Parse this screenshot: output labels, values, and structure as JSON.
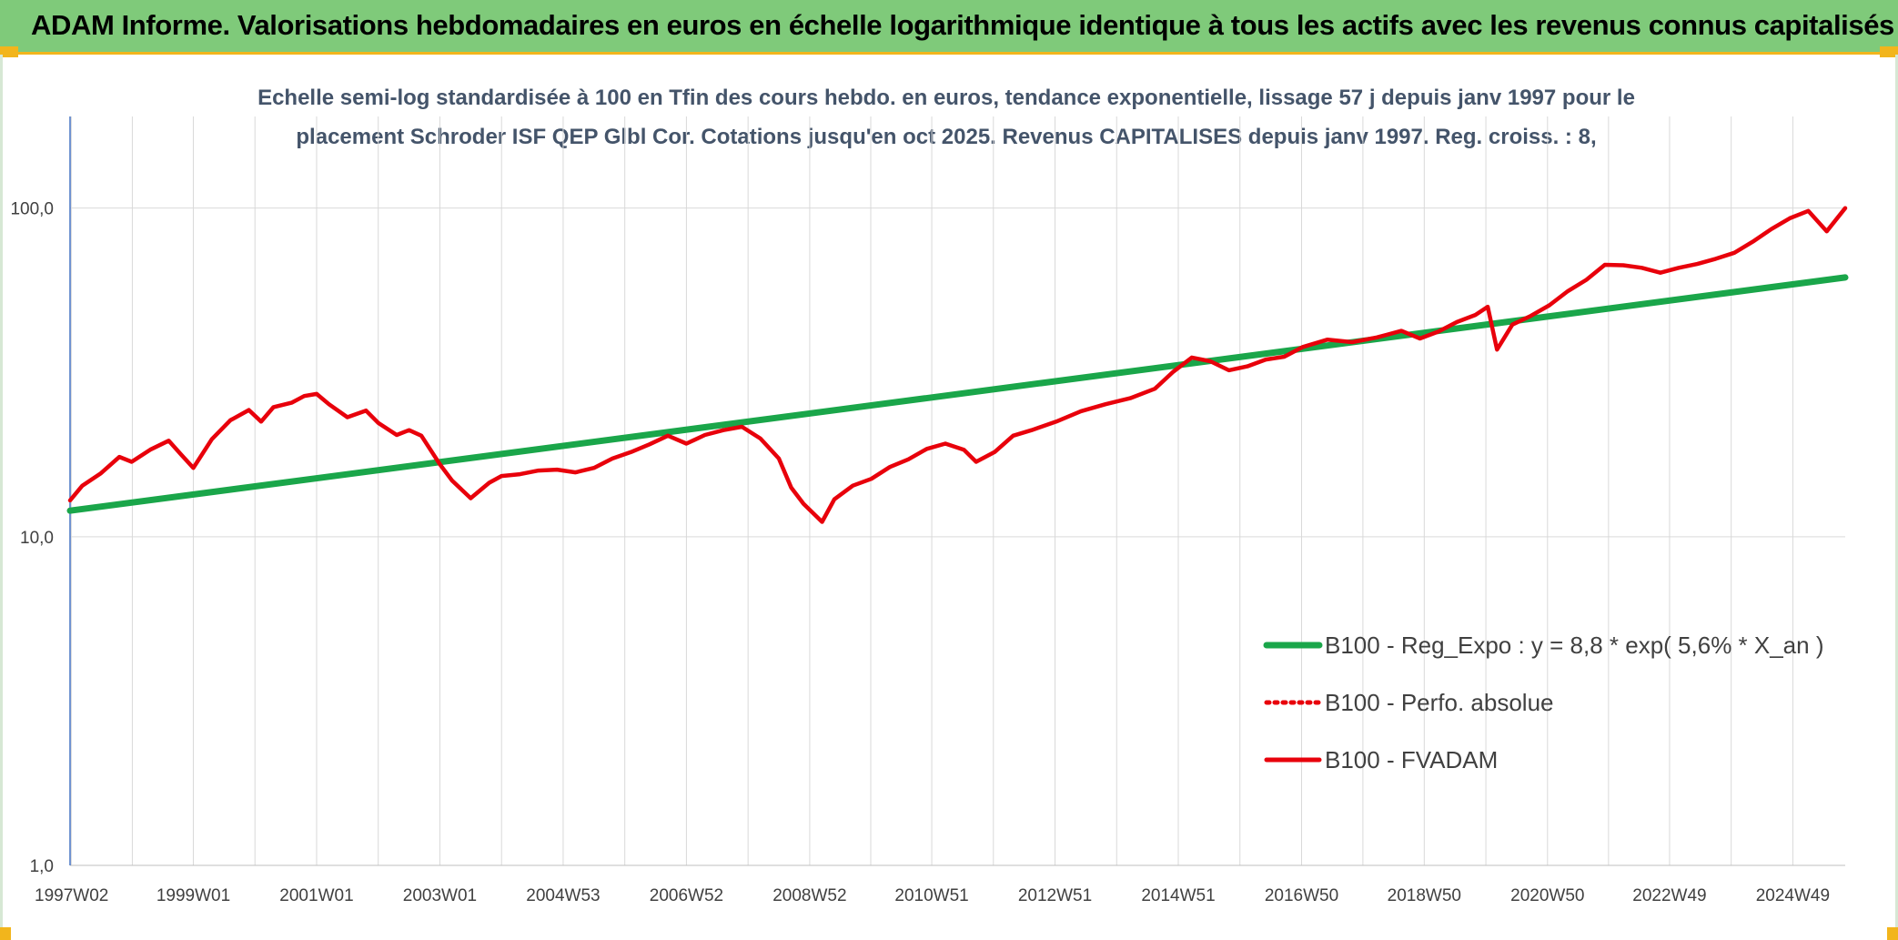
{
  "banner": {
    "title": "ADAM Informe. Valorisations hebdomadaires en euros en échelle logarithmique identique à tous les actifs avec les revenus connus capitalisés"
  },
  "colors": {
    "banner_bg": "#7fca7a",
    "accent": "#f2b51c",
    "trend": "#1aa64a",
    "series": "#e8000b"
  },
  "chart_data": {
    "type": "line",
    "subtitle_lines": [
      "Echelle semi-log standardisée à 100 en Tfin des cours hebdo. en euros, tendance exponentielle, lissage 57 j depuis janv 1997 pour le",
      "placement Schroder ISF QEP Glbl Cor. Cotations jusqu'en oct 2025. Revenus CAPITALISES depuis janv 1997. Reg. croiss. : 8,"
    ],
    "y_scale": "log",
    "ylim": [
      1,
      190
    ],
    "y_ticks": [
      1,
      10,
      100
    ],
    "y_tick_labels": [
      "1,0",
      "10,0",
      "100,0"
    ],
    "xlim": [
      1997.0,
      2025.8
    ],
    "x_tick_labels": [
      "1997W02",
      "1999W01",
      "2001W01",
      "2003W01",
      "2004W53",
      "2006W52",
      "2008W52",
      "2010W51",
      "2012W51",
      "2014W51",
      "2016W50",
      "2018W50",
      "2020W50",
      "2022W49",
      "2024W49"
    ],
    "x_tick_positions": [
      1997.02,
      1999.0,
      2001.0,
      2003.0,
      2005.0,
      2007.0,
      2009.0,
      2010.98,
      2012.98,
      2014.98,
      2016.98,
      2018.97,
      2020.97,
      2022.95,
      2024.95
    ],
    "grid": true,
    "legend_position": "bottom-right",
    "series": [
      {
        "name": "B100 - Reg_Expo : y = 8,8 * exp( 5,6% *  X_an )",
        "style": "solid",
        "color": "#1aa64a",
        "x": [
          1997.0,
          2025.8
        ],
        "y": [
          12.0,
          61.5
        ]
      },
      {
        "name": "B100 - Perfo. absolue",
        "style": "dotted",
        "color": "#e8000b",
        "x": [],
        "y": []
      },
      {
        "name": "B100 - FVADAM",
        "style": "solid",
        "color": "#e8000b",
        "x": [
          1997.0,
          1997.2,
          1997.5,
          1997.8,
          1998.0,
          1998.3,
          1998.6,
          1998.8,
          1999.0,
          1999.3,
          1999.6,
          1999.9,
          2000.1,
          2000.3,
          2000.6,
          2000.8,
          2001.0,
          2001.2,
          2001.5,
          2001.8,
          2002.0,
          2002.3,
          2002.5,
          2002.7,
          2003.0,
          2003.2,
          2003.5,
          2003.8,
          2004.0,
          2004.3,
          2004.6,
          2004.9,
          2005.2,
          2005.5,
          2005.8,
          2006.1,
          2006.4,
          2006.7,
          2007.0,
          2007.3,
          2007.6,
          2007.9,
          2008.2,
          2008.5,
          2008.7,
          2008.9,
          2009.2,
          2009.4,
          2009.7,
          2010.0,
          2010.3,
          2010.6,
          2010.9,
          2011.2,
          2011.5,
          2011.7,
          2012.0,
          2012.3,
          2012.6,
          2013.0,
          2013.4,
          2013.8,
          2014.2,
          2014.6,
          2014.9,
          2015.2,
          2015.5,
          2015.8,
          2016.1,
          2016.4,
          2016.7,
          2017.0,
          2017.4,
          2017.8,
          2018.2,
          2018.6,
          2018.9,
          2019.2,
          2019.5,
          2019.8,
          2020.0,
          2020.15,
          2020.4,
          2020.7,
          2021.0,
          2021.3,
          2021.6,
          2021.9,
          2022.2,
          2022.5,
          2022.8,
          2023.1,
          2023.4,
          2023.7,
          2024.0,
          2024.3,
          2024.6,
          2024.9,
          2025.2,
          2025.5,
          2025.8
        ],
        "y": [
          12.9,
          14.3,
          15.6,
          17.5,
          16.9,
          18.4,
          19.6,
          17.8,
          16.2,
          19.8,
          22.6,
          24.3,
          22.4,
          24.8,
          25.6,
          26.8,
          27.2,
          25.3,
          23.1,
          24.2,
          22.2,
          20.4,
          21.1,
          20.3,
          16.6,
          14.8,
          13.1,
          14.6,
          15.3,
          15.5,
          15.9,
          16.0,
          15.7,
          16.2,
          17.3,
          18.1,
          19.1,
          20.3,
          19.2,
          20.4,
          21.1,
          21.6,
          19.9,
          17.3,
          14.1,
          12.6,
          11.1,
          13.0,
          14.3,
          15.0,
          16.3,
          17.2,
          18.5,
          19.2,
          18.4,
          16.9,
          18.1,
          20.3,
          21.1,
          22.4,
          24.1,
          25.3,
          26.4,
          28.2,
          31.8,
          35.1,
          34.2,
          32.1,
          33.0,
          34.6,
          35.3,
          37.8,
          39.8,
          39.1,
          40.4,
          42.3,
          40.1,
          42.1,
          45.0,
          47.3,
          50.1,
          37.1,
          44.2,
          47.0,
          50.6,
          55.9,
          60.5,
          67.2,
          67.0,
          65.8,
          63.6,
          65.8,
          67.6,
          70.1,
          73.1,
          79.0,
          86.3,
          93.1,
          98.0,
          85.0,
          100.0
        ]
      }
    ]
  }
}
